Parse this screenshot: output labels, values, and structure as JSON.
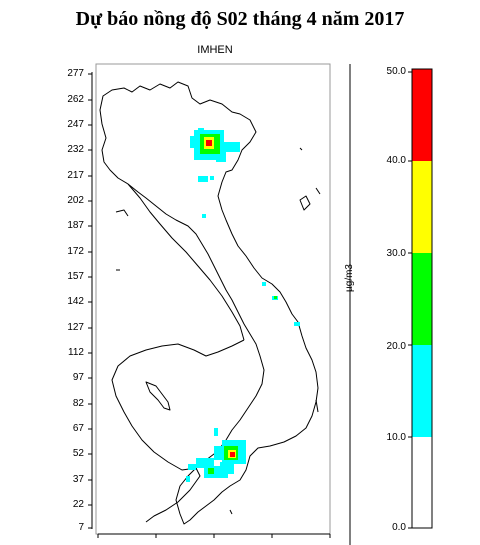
{
  "title": "Dự báo nồng độ S02 tháng 4 năm 2017",
  "subtitle": "IMHEN",
  "y_ticks": [
    "277",
    "262",
    "247",
    "232",
    "217",
    "202",
    "187",
    "172",
    "157",
    "142",
    "127",
    "112",
    "97",
    "82",
    "67",
    "52",
    "37",
    "22",
    "7"
  ],
  "colorbar": {
    "unit": "µg/m3",
    "ticks": [
      "50.0",
      "40.0",
      "30.0",
      "20.0",
      "10.0",
      "0.0"
    ],
    "bands": [
      {
        "from": 0,
        "to": 10,
        "color": "#ffffff"
      },
      {
        "from": 10,
        "to": 20,
        "color": "#00ffff"
      },
      {
        "from": 20,
        "to": 30,
        "color": "#00ff00"
      },
      {
        "from": 30,
        "to": 40,
        "color": "#ffff00"
      },
      {
        "from": 40,
        "to": 50,
        "color": "#ff0000"
      }
    ]
  },
  "colors": {
    "low": "#00ffff",
    "medium": "#00ff00",
    "high": "#ffff00",
    "max": "#ff0000"
  }
}
